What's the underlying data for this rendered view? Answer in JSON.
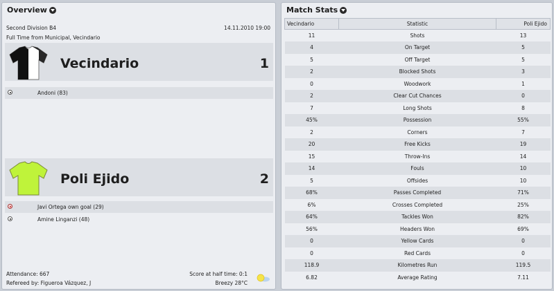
{
  "overview": {
    "title": "Overview",
    "competition": "Second Division B4",
    "date": "14.11.2010 19:00",
    "status": "Full Time from Municipal, Vecindario",
    "home": {
      "name": "Vecindario",
      "score": "1",
      "shirt_colors": [
        "#111111",
        "#ffffff"
      ],
      "goals": [
        {
          "text": "Andoni (83)",
          "type": "goal"
        }
      ]
    },
    "away": {
      "name": "Poli Ejido",
      "score": "2",
      "shirt_colors": [
        "#bff33a"
      ],
      "goals": [
        {
          "text": "Javi Ortega own goal (29)",
          "type": "own-goal"
        },
        {
          "text": "Amine Linganzi (48)",
          "type": "goal"
        }
      ]
    },
    "attendance": "Attendance: 667",
    "referee": "Refereed by: Figueroa Vázquez, J",
    "half_time": "Score at half time: 0:1",
    "weather": "Breezy 28°C",
    "weather_icon": "sun-cloud-icon"
  },
  "stats": {
    "title": "Match Stats",
    "headers": {
      "home": "Vecindario",
      "stat": "Statistic",
      "away": "Poli Ejido"
    },
    "rows": [
      {
        "home": "11",
        "label": "Shots",
        "away": "13"
      },
      {
        "home": "4",
        "label": "On Target",
        "away": "5"
      },
      {
        "home": "5",
        "label": "Off Target",
        "away": "5"
      },
      {
        "home": "2",
        "label": "Blocked Shots",
        "away": "3"
      },
      {
        "home": "0",
        "label": "Woodwork",
        "away": "1"
      },
      {
        "home": "2",
        "label": "Clear Cut Chances",
        "away": "0"
      },
      {
        "home": "7",
        "label": "Long Shots",
        "away": "8"
      },
      {
        "home": "45%",
        "label": "Possession",
        "away": "55%"
      },
      {
        "home": "2",
        "label": "Corners",
        "away": "7"
      },
      {
        "home": "20",
        "label": "Free Kicks",
        "away": "19"
      },
      {
        "home": "15",
        "label": "Throw-Ins",
        "away": "14"
      },
      {
        "home": "14",
        "label": "Fouls",
        "away": "10"
      },
      {
        "home": "5",
        "label": "Offsides",
        "away": "10"
      },
      {
        "home": "68%",
        "label": "Passes Completed",
        "away": "71%"
      },
      {
        "home": "6%",
        "label": "Crosses Completed",
        "away": "25%"
      },
      {
        "home": "64%",
        "label": "Tackles Won",
        "away": "82%"
      },
      {
        "home": "56%",
        "label": "Headers Won",
        "away": "69%"
      },
      {
        "home": "0",
        "label": "Yellow Cards",
        "away": "0"
      },
      {
        "home": "0",
        "label": "Red Cards",
        "away": "0"
      },
      {
        "home": "118.9",
        "label": "Kilometres Run",
        "away": "119.5"
      },
      {
        "home": "6.82",
        "label": "Average Rating",
        "away": "7.11"
      }
    ]
  }
}
